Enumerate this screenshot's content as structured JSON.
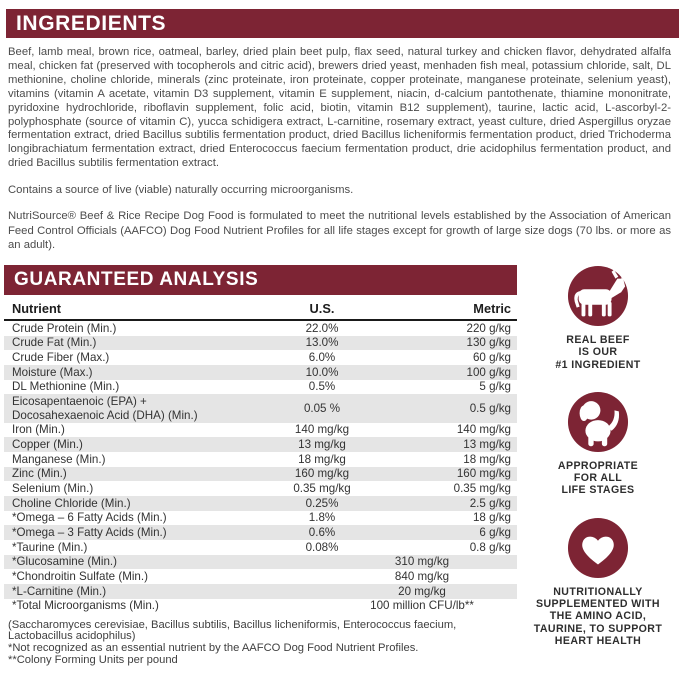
{
  "colors": {
    "maroon": "#7d2434",
    "row_alt": "#e5e5e5",
    "body_text": "#4c4c4c",
    "table_text": "#333333"
  },
  "ingredients_section": {
    "title": "INGREDIENTS",
    "paragraph": "Beef, lamb meal, brown rice, oatmeal, barley, dried plain beet pulp, flax seed, natural turkey and chicken flavor, dehydrated alfalfa meal, chicken fat (preserved with tocopherols and citric acid), brewers dried yeast, menhaden fish meal, potassium chloride, salt, DL methionine, choline chloride, minerals (zinc proteinate, iron proteinate, copper proteinate, manganese proteinate, selenium yeast), vitamins (vitamin A acetate, vitamin D3 supplement, vitamin E supplement, niacin, d-calcium pantothenate, thiamine mononitrate, pyridoxine hydrochloride, riboflavin supplement, folic acid, biotin, vitamin B12 supplement), taurine, lactic acid, L-ascorbyl-2-polyphosphate (source of vitamin C), yucca schidigera extract, L-carnitine, rosemary extract, yeast culture, dried Aspergillus oryzae fermentation extract, dried Bacillus subtilis fermentation product, dried Bacillus licheniformis fermentation product, dried Trichoderma longibrachiatum fermentation extract, dried Enterococcus faecium fermentation product, drie acidophilus fermentation product, and dried Bacillus subtilis fermentation extract.",
    "note_microorganisms": "Contains a source of live (viable) naturally occurring microorganisms.",
    "note_aafco": "NutriSource® Beef & Rice Recipe Dog Food is formulated to meet the nutritional levels established by the Association of American Feed Control Officials (AAFCO) Dog Food Nutrient Profiles for all life stages except for growth of large size dogs (70 lbs. or more as an adult)."
  },
  "analysis_section": {
    "title": "GUARANTEED ANALYSIS",
    "columns": [
      "Nutrient",
      "U.S.",
      "Metric"
    ],
    "rows": [
      {
        "label": "Crude Protein (Min.)",
        "us": "22.0%",
        "metric": "220 g/kg",
        "span": false
      },
      {
        "label": "Crude Fat (Min.)",
        "us": "13.0%",
        "metric": "130 g/kg",
        "span": false
      },
      {
        "label": "Crude Fiber (Max.)",
        "us": "6.0%",
        "metric": "60 g/kg",
        "span": false
      },
      {
        "label": "Moisture (Max.)",
        "us": "10.0%",
        "metric": "100 g/kg",
        "span": false
      },
      {
        "label": "DL Methionine (Min.)",
        "us": "0.5%",
        "metric": "5 g/kg",
        "span": false
      },
      {
        "label": "Eicosapentaenoic (EPA) +\nDocosahexaenoic Acid (DHA) (Min.)",
        "us": "0.05 %",
        "metric": "0.5 g/kg",
        "span": false
      },
      {
        "label": "Iron (Min.)",
        "us": "140 mg/kg",
        "metric": "140 mg/kg",
        "span": false
      },
      {
        "label": "Copper (Min.)",
        "us": "13 mg/kg",
        "metric": "13 mg/kg",
        "span": false
      },
      {
        "label": "Manganese (Min.)",
        "us": "18 mg/kg",
        "metric": "18 mg/kg",
        "span": false
      },
      {
        "label": "Zinc (Min.)",
        "us": "160 mg/kg",
        "metric": "160 mg/kg",
        "span": false
      },
      {
        "label": "Selenium (Min.)",
        "us": "0.35 mg/kg",
        "metric": "0.35 mg/kg",
        "span": false
      },
      {
        "label": "Choline Chloride (Min.)",
        "us": "0.25%",
        "metric": "2.5 g/kg",
        "span": false
      },
      {
        "label": "*Omega – 6 Fatty Acids (Min.)",
        "us": "1.8%",
        "metric": "18 g/kg",
        "span": false
      },
      {
        "label": "*Omega – 3 Fatty Acids (Min.)",
        "us": "0.6%",
        "metric": "6 g/kg",
        "span": false
      },
      {
        "label": "*Taurine (Min.)",
        "us": "0.08%",
        "metric": "0.8 g/kg",
        "span": false
      },
      {
        "label": "*Glucosamine (Min.)",
        "value": "310 mg/kg",
        "span": true
      },
      {
        "label": "*Chondroitin Sulfate (Min.)",
        "value": "840 mg/kg",
        "span": true
      },
      {
        "label": "*L-Carnitine (Min.)",
        "value": "20 mg/kg",
        "span": true
      },
      {
        "label": "*Total Microorganisms (Min.)",
        "value": "100 million CFU/lb**",
        "span": true
      }
    ],
    "footnotes": [
      "(Saccharomyces cerevisiae, Bacillus subtilis, Bacillus licheniformis, Enterococcus faecium,\nLactobacillus acidophilus)",
      "*Not recognized as an essential nutrient by the AAFCO Dog Food Nutrient Profiles.",
      "**Colony Forming Units per pound"
    ]
  },
  "sidebar": {
    "badges": [
      {
        "icon": "cow-icon",
        "text": "REAL BEEF\nIS OUR\n#1 INGREDIENT"
      },
      {
        "icon": "dog-icon",
        "text": "APPROPRIATE\nFOR ALL\nLIFE STAGES"
      },
      {
        "icon": "heart-icon",
        "text": "NUTRITIONALLY\nSUPPLEMENTED WITH\nTHE AMINO ACID,\nTAURINE, TO SUPPORT\nHEART HEALTH"
      }
    ]
  }
}
